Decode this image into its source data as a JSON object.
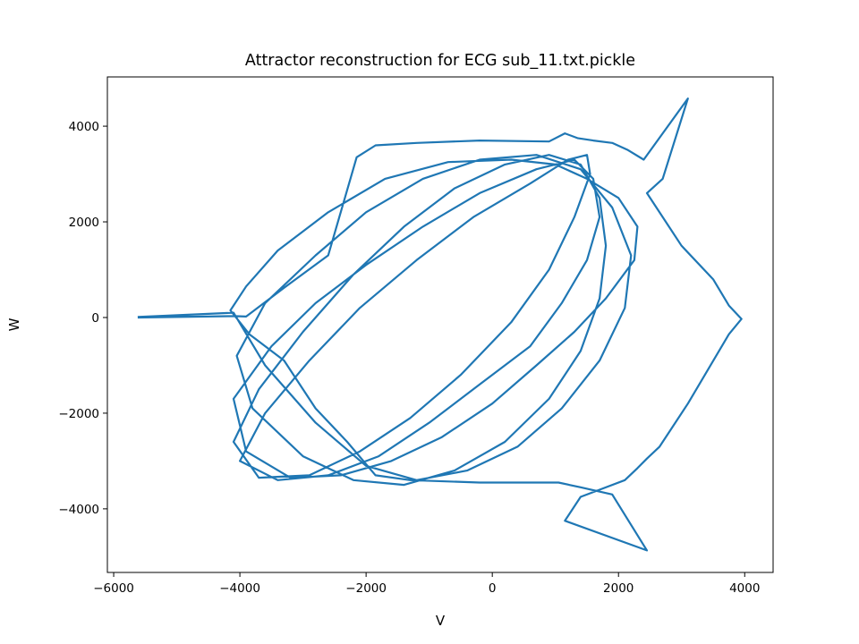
{
  "chart_data": {
    "type": "line",
    "title": "Attractor reconstruction for ECG sub_11.txt.pickle",
    "xlabel": "V",
    "ylabel": "W",
    "xlim": [
      -6100,
      4450
    ],
    "ylim": [
      -5330,
      5030
    ],
    "xticks": [
      -6000,
      -4000,
      -2000,
      0,
      2000,
      4000
    ],
    "xtick_labels": [
      "−6000",
      "−4000",
      "−2000",
      "0",
      "2000",
      "4000"
    ],
    "yticks": [
      -4000,
      -2000,
      0,
      2000,
      4000
    ],
    "ytick_labels": [
      "−4000",
      "−2000",
      "0",
      "2000",
      "4000"
    ],
    "grid": false,
    "series": [
      {
        "color": "#1f77b4",
        "x": [
          -5620,
          -4100,
          -3900,
          -3300,
          -2600,
          -2150,
          -1850,
          -1200,
          -200,
          900,
          1150,
          1350,
          1600,
          1900,
          2150,
          2400,
          3100,
          2700,
          2450,
          3000,
          3500,
          3750,
          3950,
          3750,
          3100,
          2650,
          2450,
          2300,
          2100,
          1700,
          1400,
          1150,
          2450,
          1900,
          1400,
          1050,
          -200,
          -1300,
          -1850,
          -2300,
          -2800,
          -3300,
          -3850,
          -4150,
          -3900,
          -3400,
          -2600,
          -1700,
          -700,
          300,
          1000,
          1500,
          2000,
          2300,
          2250,
          1800,
          1300,
          700,
          0,
          -800,
          -1600,
          -2400,
          -3200,
          -3900,
          -4100,
          -3500,
          -2800,
          -2000,
          -1100,
          -200,
          700,
          1300,
          1600,
          1700,
          1500,
          1100,
          600,
          -200,
          -1000,
          -1800,
          -2600,
          -3400,
          -4000,
          -3600,
          -2900,
          -2100,
          -1200,
          -300,
          600,
          1200,
          1500,
          1550,
          1300,
          900,
          300,
          -500,
          -1300,
          -2100,
          -2900,
          -3700,
          -4100,
          -3700,
          -3000,
          -2200,
          -1400,
          -600,
          200,
          900,
          1400,
          1700,
          1800,
          1700,
          1400,
          900,
          200,
          -600,
          -1400,
          -2200,
          -3000,
          -3800,
          -4050,
          -3600,
          -2800,
          -2000,
          -1100,
          -200,
          700,
          1400,
          1900,
          2200,
          2100,
          1700,
          1100,
          400,
          -400,
          -1200,
          -2000,
          -2800,
          -3600,
          -4100,
          -5620
        ],
        "y": [
          0,
          30,
          20,
          620,
          1300,
          3350,
          3600,
          3650,
          3700,
          3680,
          3850,
          3750,
          3700,
          3650,
          3500,
          3300,
          4580,
          2900,
          2600,
          1500,
          800,
          250,
          -30,
          -350,
          -1800,
          -2700,
          -2950,
          -3150,
          -3400,
          -3600,
          -3750,
          -4250,
          -4870,
          -3700,
          -3550,
          -3450,
          -3450,
          -3400,
          -3300,
          -2600,
          -1900,
          -900,
          -350,
          150,
          650,
          1400,
          2200,
          2900,
          3250,
          3300,
          3200,
          2900,
          2500,
          1900,
          1200,
          400,
          -300,
          -1000,
          -1800,
          -2500,
          -3000,
          -3300,
          -3350,
          -2800,
          -1700,
          -600,
          300,
          1100,
          1900,
          2600,
          3100,
          3300,
          2900,
          2100,
          1200,
          300,
          -600,
          -1400,
          -2200,
          -2900,
          -3300,
          -3400,
          -3000,
          -2000,
          -900,
          200,
          1200,
          2100,
          2800,
          3300,
          3400,
          3000,
          2100,
          1000,
          -100,
          -1200,
          -2100,
          -2800,
          -3300,
          -3350,
          -2600,
          -1500,
          -300,
          900,
          1900,
          2700,
          3200,
          3400,
          3200,
          2500,
          1500,
          400,
          -700,
          -1700,
          -2600,
          -3200,
          -3500,
          -3400,
          -2900,
          -1900,
          -800,
          300,
          1300,
          2200,
          2900,
          3300,
          3400,
          3100,
          2300,
          1300,
          200,
          -900,
          -1900,
          -2700,
          -3200,
          -3400,
          -3100,
          -2200,
          -1000,
          100,
          10
        ]
      }
    ]
  }
}
